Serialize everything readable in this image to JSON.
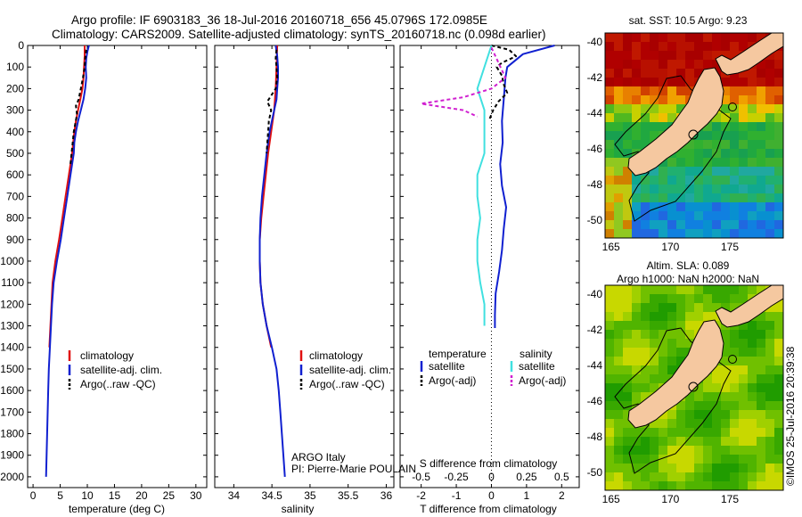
{
  "header": {
    "line1": "Argo profile: IF 6903183_36 18-Jul-2016 20160718_656 45.0796S 172.0985E",
    "line2": "Climatology: CARS2009. Satellite-adjusted climatology: synTS_20160718.nc (0.098d earlier)"
  },
  "colors": {
    "climatology": "#e01010",
    "satellite": "#1020d0",
    "argo": "#000000",
    "salinity_satellite": "#40e0e0",
    "salinity_argo": "#d020d0",
    "land": "#f5c8a0"
  },
  "chart_data": [
    {
      "type": "line",
      "id": "temperature",
      "xlabel": "temperature (deg C)",
      "ylabel": "",
      "xlim": [
        -1,
        32
      ],
      "ylim": [
        2050,
        0
      ],
      "x_ticks": [
        0,
        5,
        10,
        15,
        20,
        25,
        30
      ],
      "y_ticks": [
        0,
        100,
        200,
        300,
        400,
        500,
        600,
        700,
        800,
        900,
        1000,
        1100,
        1200,
        1300,
        1400,
        1500,
        1600,
        1700,
        1800,
        1900,
        2000
      ],
      "series": [
        {
          "name": "climatology",
          "color": "#e01010",
          "depth": [
            0,
            50,
            100,
            150,
            200,
            250,
            300,
            350,
            400,
            450,
            500,
            600,
            700,
            800,
            900,
            1000,
            1100,
            1200,
            1300,
            1400
          ],
          "values": [
            9.5,
            9.5,
            9.4,
            9.3,
            9.1,
            8.7,
            8.3,
            7.9,
            7.6,
            7.4,
            7.2,
            6.6,
            6.0,
            5.4,
            4.8,
            4.1,
            3.6,
            3.4,
            3.2,
            3.0
          ]
        },
        {
          "name": "satellite-adj. clim.",
          "color": "#1020d0",
          "depth": [
            0,
            30,
            60,
            100,
            150,
            200,
            250,
            300,
            350,
            400,
            450,
            500,
            600,
            700,
            800,
            900,
            1000,
            1100,
            1200,
            1300,
            1400,
            1500,
            1600,
            1700,
            1800,
            1900,
            2000
          ],
          "values": [
            10.3,
            10.0,
            9.8,
            9.7,
            9.8,
            9.6,
            9.3,
            8.8,
            8.3,
            7.9,
            7.6,
            7.5,
            6.9,
            6.3,
            5.7,
            5.1,
            4.4,
            3.8,
            3.5,
            3.3,
            3.1,
            2.9,
            2.8,
            2.7,
            2.6,
            2.5,
            2.4
          ]
        },
        {
          "name": "Argo(..raw -QC)",
          "color": "#000000",
          "dashed": true,
          "depth": [
            20,
            60,
            100,
            150,
            200,
            250,
            280,
            320,
            360,
            400,
            450,
            500,
            550
          ],
          "values": [
            9.8,
            9.6,
            9.5,
            9.2,
            8.8,
            8.4,
            7.9,
            8.1,
            7.8,
            7.5,
            7.3,
            7.1,
            6.9
          ]
        }
      ]
    },
    {
      "type": "line",
      "id": "salinity",
      "xlabel": "salinity",
      "ylabel": "",
      "xlim": [
        33.75,
        36.1
      ],
      "ylim": [
        2050,
        0
      ],
      "x_ticks": [
        34,
        34.5,
        35,
        35.5,
        36
      ],
      "series": [
        {
          "name": "climatology",
          "color": "#e01010",
          "depth": [
            0,
            100,
            200,
            300,
            400,
            500,
            600,
            700,
            800,
            900,
            1000,
            1100,
            1200,
            1300,
            1400
          ],
          "values": [
            34.57,
            34.56,
            34.55,
            34.53,
            34.49,
            34.45,
            34.42,
            34.39,
            34.36,
            34.34,
            34.34,
            34.35,
            34.38,
            34.43,
            34.49
          ]
        },
        {
          "name": "satellite-adj. clim.",
          "color": "#1020d0",
          "depth": [
            0,
            50,
            100,
            150,
            200,
            250,
            300,
            350,
            400,
            500,
            600,
            700,
            800,
            900,
            1000,
            1100,
            1200,
            1300,
            1400,
            1500,
            1600,
            1700,
            1800,
            1900,
            2000
          ],
          "values": [
            34.55,
            34.57,
            34.58,
            34.58,
            34.57,
            34.56,
            34.53,
            34.5,
            34.47,
            34.43,
            34.4,
            34.37,
            34.35,
            34.34,
            34.34,
            34.35,
            34.38,
            34.43,
            34.5,
            34.56,
            34.59,
            34.61,
            34.63,
            34.65,
            34.67
          ]
        },
        {
          "name": "Argo(..raw -QC)",
          "color": "#000000",
          "dashed": true,
          "depth": [
            20,
            60,
            100,
            150,
            200,
            260,
            300,
            350,
            400,
            450,
            500
          ],
          "values": [
            34.56,
            34.55,
            34.56,
            34.57,
            34.55,
            34.44,
            34.49,
            34.46,
            34.45,
            34.44,
            34.43
          ]
        }
      ],
      "annotations": [
        "ARGO Italy",
        "PI: Pierre-Marie POULAIN"
      ]
    },
    {
      "type": "line",
      "id": "difference",
      "xlabel": "T difference from climatology",
      "xlabel_top": "S difference from climatology",
      "ylabel": "",
      "xlim": [
        -2.6,
        2.5
      ],
      "ylim": [
        2050,
        0
      ],
      "x_ticks": [
        -2,
        -1,
        0,
        1,
        2
      ],
      "x_ticks_top": [
        "-0.5",
        "-0.25",
        "0",
        "0.25",
        "0.5"
      ],
      "x_ticks_top_pos": [
        -2,
        -1,
        0,
        1,
        2
      ],
      "legend_headers": [
        "temperature",
        "salinity"
      ],
      "series": [
        {
          "name": "satellite",
          "group": "temperature",
          "color": "#1020d0",
          "depth": [
            0,
            40,
            100,
            150,
            250,
            350,
            450,
            550,
            650,
            750,
            850,
            950,
            1050,
            1150,
            1250,
            1310
          ],
          "values": [
            1.8,
            0.9,
            0.45,
            0.4,
            0.35,
            0.3,
            0.32,
            0.25,
            0.3,
            0.42,
            0.35,
            0.3,
            0.22,
            0.12,
            0.1,
            0.1
          ]
        },
        {
          "name": "Argo(-adj)",
          "group": "temperature",
          "color": "#000000",
          "dashed": true,
          "depth": [
            0,
            20,
            50,
            80,
            100,
            140,
            180,
            220,
            260,
            300,
            340
          ],
          "values": [
            0.0,
            0.5,
            0.7,
            0.3,
            0.15,
            0.3,
            0.35,
            0.45,
            0.2,
            0.05,
            -0.05
          ]
        },
        {
          "name": "satellite",
          "group": "salinity",
          "color": "#40e0e0",
          "depth": [
            0,
            100,
            200,
            300,
            400,
            500,
            600,
            700,
            800,
            900,
            1000,
            1100,
            1200,
            1300
          ],
          "values": [
            0.0,
            -0.05,
            -0.1,
            -0.05,
            -0.05,
            -0.05,
            -0.1,
            -0.1,
            -0.08,
            -0.1,
            -0.1,
            -0.08,
            -0.05,
            -0.05
          ]
        },
        {
          "name": "Argo(-adj)",
          "group": "salinity",
          "color": "#d020d0",
          "dashed": true,
          "depth": [
            10,
            80,
            150,
            200,
            240,
            270,
            300,
            330
          ],
          "values": [
            0.0,
            0.05,
            0.1,
            0.0,
            -0.2,
            -0.5,
            -0.2,
            -0.1
          ]
        }
      ]
    },
    {
      "type": "heatmap",
      "id": "sst_map",
      "title": "sat. SST: 10.5 Argo: 9.23",
      "x_ticks": [
        "165",
        "170",
        "175"
      ],
      "y_ticks": [
        "-40",
        "-42",
        "-44",
        "-46",
        "-48",
        "-50"
      ],
      "xlim": [
        164.5,
        179.5
      ],
      "ylim": [
        -51,
        -39.5
      ]
    },
    {
      "type": "heatmap",
      "id": "sla_map",
      "title_line1": "Altim. SLA: 0.089",
      "title_line2": "Argo h1000: NaN h2000: NaN",
      "x_ticks": [
        "165",
        "170",
        "175"
      ],
      "y_ticks": [
        "-40",
        "-42",
        "-44",
        "-46",
        "-48",
        "-50"
      ],
      "xlim": [
        164.5,
        179.5
      ],
      "ylim": [
        -51,
        -39.5
      ]
    }
  ],
  "labels": {
    "climatology": "climatology",
    "satellite_adj": "satellite-adj. clim.",
    "argo_raw": "Argo(..raw -QC)",
    "temperature": "temperature",
    "salinity": "salinity",
    "satellite": "satellite",
    "argo_adj": "Argo(-adj)",
    "argo_italy": "ARGO Italy",
    "pi": "PI: Pierre-Marie POULAIN",
    "watermark": "©IMOS 25-Jul-2016 20:39:38"
  }
}
